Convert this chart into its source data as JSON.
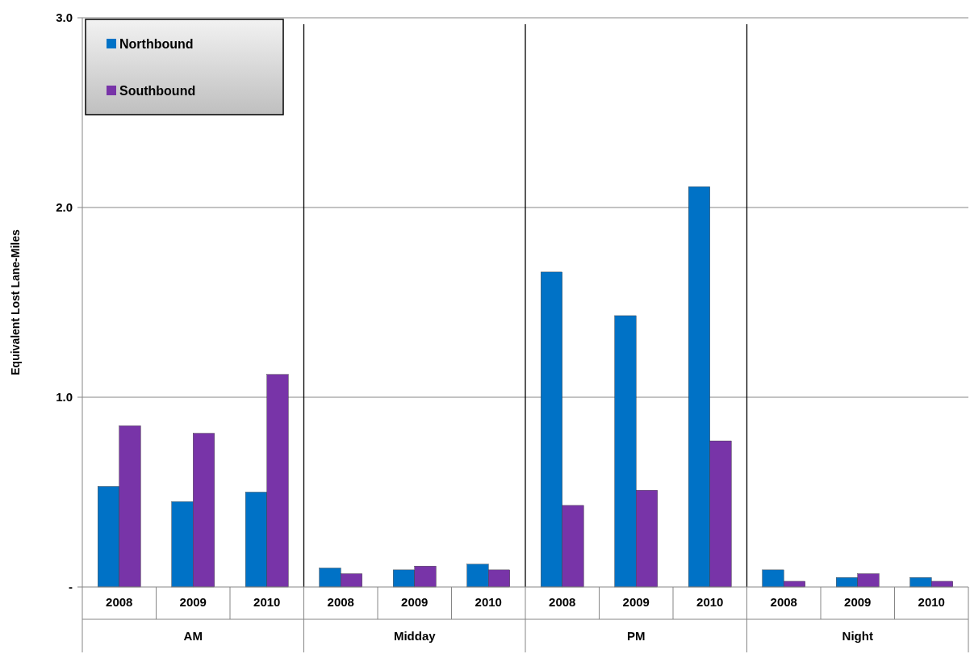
{
  "chart_data": {
    "type": "bar",
    "ylabel": "Equivalent Lost Lane-Miles",
    "categories": [
      "2008",
      "2009",
      "2010",
      "2008",
      "2009",
      "2010",
      "2008",
      "2009",
      "2010",
      "2008",
      "2009",
      "2010"
    ],
    "series": [
      {
        "name": "Northbound",
        "color": "#0072c6",
        "values": [
          0.53,
          0.45,
          0.5,
          0.1,
          0.09,
          0.12,
          1.66,
          1.43,
          2.11,
          0.09,
          0.05,
          0.05
        ]
      },
      {
        "name": "Southbound",
        "color": "#7834a8",
        "values": [
          0.85,
          0.81,
          1.12,
          0.07,
          0.11,
          0.09,
          0.43,
          0.51,
          0.77,
          0.03,
          0.07,
          0.03
        ]
      }
    ],
    "annotations": [
      "AM",
      "Midday",
      "PM",
      "Night"
    ],
    "ylim": [
      0,
      3
    ],
    "yticks": [
      {
        "value": 0,
        "label": "-"
      },
      {
        "value": 1,
        "label": "1.0"
      },
      {
        "value": 2,
        "label": "2.0"
      },
      {
        "value": 3,
        "label": "3.0"
      }
    ],
    "grid": "y",
    "legend": "top left"
  }
}
